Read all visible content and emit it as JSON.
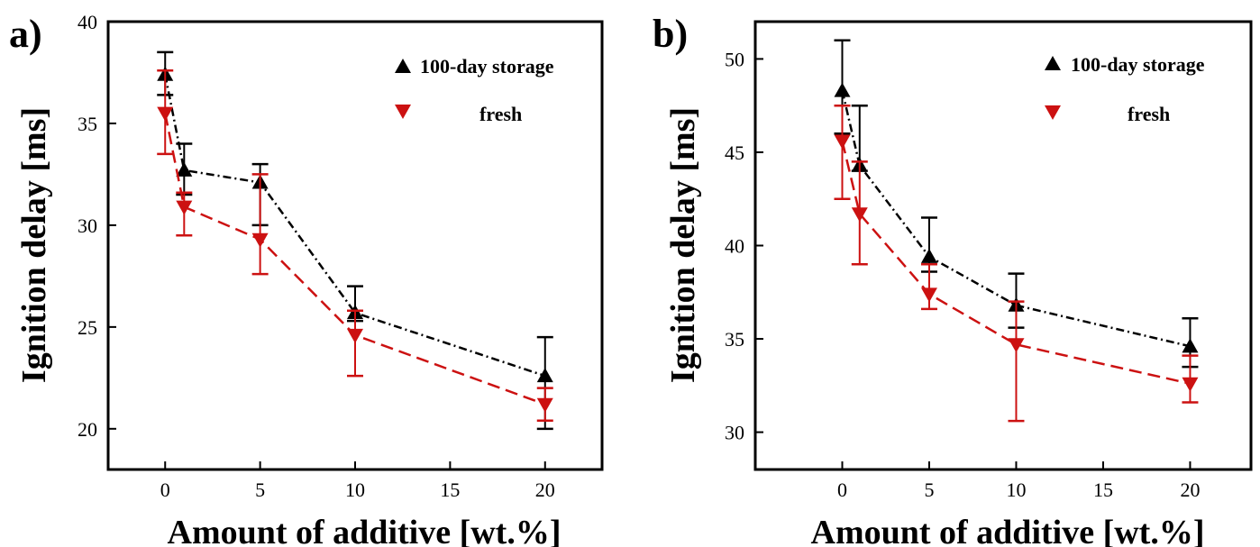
{
  "figure": {
    "panel_labels": [
      "a)",
      "b)"
    ]
  },
  "chart_data": [
    {
      "type": "line",
      "panel": "a)",
      "title": "",
      "xlabel": "Amount of additive [wt.%]",
      "ylabel": "Ignition delay [ms]",
      "xlim": [
        -3,
        23
      ],
      "ylim": [
        18,
        40
      ],
      "xticks": [
        0,
        5,
        10,
        15,
        20
      ],
      "yticks": [
        20,
        25,
        30,
        35,
        40
      ],
      "legend_position": "top-right",
      "series": [
        {
          "name": "100-day storage",
          "color": "#000000",
          "marker": "triangle-up",
          "line": "dash-dot",
          "x": [
            0,
            1,
            5,
            10,
            20
          ],
          "y": [
            37.4,
            32.7,
            32.1,
            25.7,
            22.6
          ],
          "err_upper": [
            1.1,
            1.3,
            0.9,
            1.3,
            1.9
          ],
          "err_lower": [
            1.0,
            1.2,
            2.1,
            0.4,
            2.6
          ]
        },
        {
          "name": "fresh",
          "color": "#cc1111",
          "marker": "triangle-down",
          "line": "dashed",
          "x": [
            0,
            1,
            5,
            10,
            20
          ],
          "y": [
            35.5,
            30.9,
            29.3,
            24.6,
            21.2
          ],
          "err_upper": [
            2.1,
            0.7,
            3.2,
            1.2,
            0.8
          ],
          "err_lower": [
            2.0,
            1.4,
            1.7,
            2.0,
            0.8
          ]
        }
      ]
    },
    {
      "type": "line",
      "panel": "b)",
      "title": "",
      "xlabel": "Amount of additive [wt.%]",
      "ylabel": "Ignition delay [ms]",
      "xlim": [
        -5,
        23.5
      ],
      "ylim": [
        28,
        52
      ],
      "xticks": [
        0,
        5,
        10,
        15,
        20
      ],
      "yticks": [
        30,
        35,
        40,
        45,
        50
      ],
      "legend_position": "top-right",
      "series": [
        {
          "name": "100-day storage",
          "color": "#000000",
          "marker": "triangle-up",
          "line": "dash-dot",
          "x": [
            0,
            1,
            5,
            10,
            20
          ],
          "y": [
            48.3,
            44.3,
            39.4,
            36.8,
            34.6
          ],
          "err_upper": [
            2.7,
            3.2,
            2.1,
            1.7,
            1.5
          ],
          "err_lower": [
            2.3,
            0.3,
            0.8,
            1.2,
            1.1
          ]
        },
        {
          "name": "fresh",
          "color": "#cc1111",
          "marker": "triangle-down",
          "line": "dashed",
          "x": [
            0,
            1,
            5,
            10,
            20
          ],
          "y": [
            45.6,
            41.7,
            37.4,
            34.7,
            32.6
          ],
          "err_upper": [
            1.9,
            2.8,
            1.6,
            2.3,
            1.5
          ],
          "err_lower": [
            3.1,
            2.7,
            0.8,
            4.1,
            1.0
          ]
        }
      ]
    }
  ]
}
